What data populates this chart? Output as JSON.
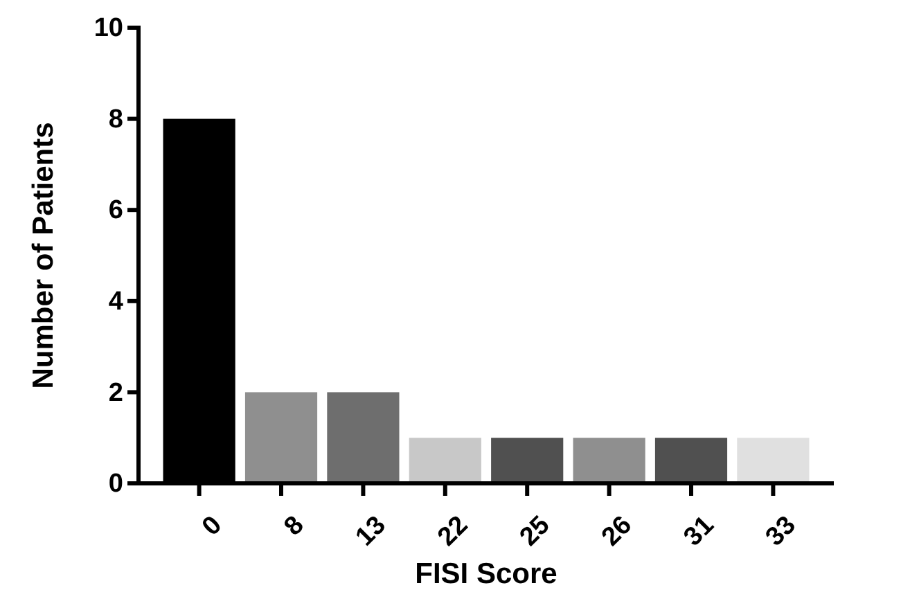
{
  "chart_data": {
    "type": "bar",
    "xlabel": "FISI Score",
    "ylabel": "Number of Patients",
    "categories": [
      "0",
      "8",
      "13",
      "22",
      "25",
      "26",
      "31",
      "33"
    ],
    "values": [
      8,
      2,
      2,
      1,
      1,
      1,
      1,
      1
    ],
    "colors": [
      "#000000",
      "#8f8f8f",
      "#6e6e6e",
      "#c8c8c8",
      "#505050",
      "#8f8f8f",
      "#505050",
      "#e0e0e0"
    ],
    "ylim": [
      0,
      10
    ],
    "yticks": [
      0,
      2,
      4,
      6,
      8,
      10
    ],
    "grid": false
  }
}
